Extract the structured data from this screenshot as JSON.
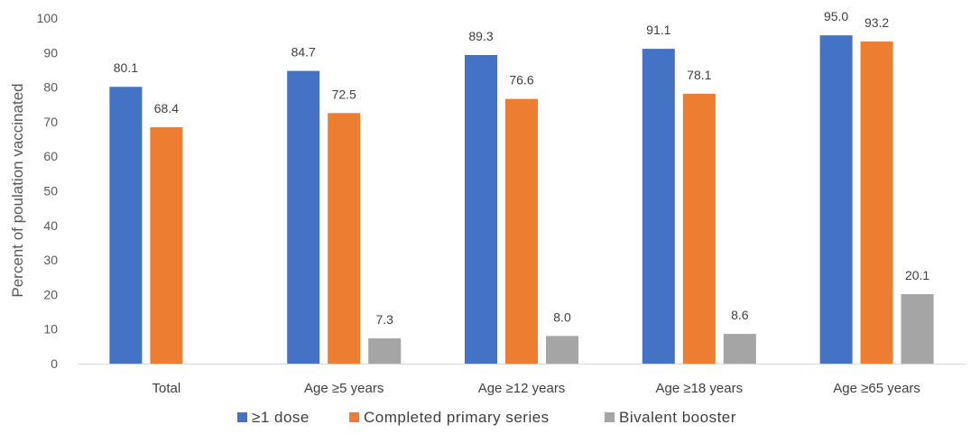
{
  "chart_data": {
    "type": "bar",
    "title": "",
    "xlabel": "",
    "ylabel": "Percent of poulation vaccinated",
    "ylim": [
      0,
      100
    ],
    "yticks": [
      0,
      10,
      20,
      30,
      40,
      50,
      60,
      70,
      80,
      90,
      100
    ],
    "grid": false,
    "legend_position": "bottom",
    "categories": [
      "Total",
      "Age ≥5 years",
      "Age ≥12 years",
      "Age ≥18 years",
      "Age ≥65 years"
    ],
    "series": [
      {
        "name": "≥1 dose",
        "color": "#4472C4",
        "values": [
          80.1,
          84.7,
          89.3,
          91.1,
          95.0
        ],
        "labels": [
          "80.1",
          "84.7",
          "89.3",
          "91.1",
          "95.0"
        ]
      },
      {
        "name": "Completed primary series",
        "color": "#ED7D31",
        "values": [
          68.4,
          72.5,
          76.6,
          78.1,
          93.2
        ],
        "labels": [
          "68.4",
          "72.5",
          "76.6",
          "78.1",
          "93.2"
        ]
      },
      {
        "name": "Bivalent booster",
        "color": "#A5A5A5",
        "values": [
          null,
          7.3,
          8.0,
          8.6,
          20.1
        ],
        "labels": [
          null,
          "7.3",
          "8.0",
          "8.6",
          "20.1"
        ]
      }
    ]
  }
}
